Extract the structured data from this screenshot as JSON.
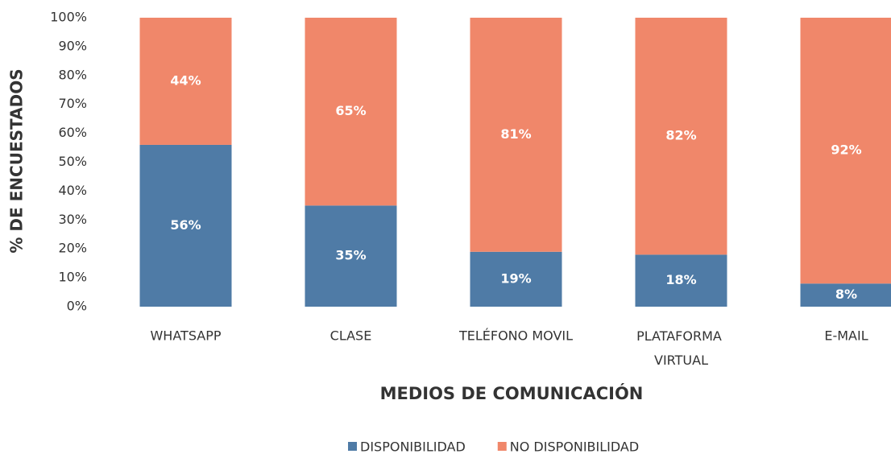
{
  "chart_data": {
    "type": "stacked_bar",
    "categories": [
      "WHATSAPP",
      "CLASE",
      "TELÉFONO MOVIL",
      "PLATAFORMA VIRTUAL",
      "E-MAIL"
    ],
    "series": [
      {
        "name": "DISPONIBILIDAD",
        "color": "#4f7ba6",
        "values": [
          56,
          35,
          19,
          18,
          8
        ],
        "value_labels": [
          "56%",
          "35%",
          "19%",
          "18%",
          "8%"
        ]
      },
      {
        "name": "NO DISPONIBILIDAD",
        "color": "#f0876a",
        "values": [
          44,
          65,
          81,
          82,
          92
        ],
        "value_labels": [
          "44%",
          "65%",
          "81%",
          "82%",
          "92%"
        ]
      }
    ],
    "xlabel": "MEDIOS DE COMUNICACIÓN",
    "ylabel": "% DE ENCUESTADOS",
    "ylim": [
      0,
      100
    ],
    "yticks": [
      {
        "value": 0,
        "label": "0%"
      },
      {
        "value": 10,
        "label": "10%"
      },
      {
        "value": 20,
        "label": "20%"
      },
      {
        "value": 30,
        "label": "30%"
      },
      {
        "value": 40,
        "label": "40%"
      },
      {
        "value": 50,
        "label": "50%"
      },
      {
        "value": 60,
        "label": "60%"
      },
      {
        "value": 70,
        "label": "70%"
      },
      {
        "value": 80,
        "label": "80%"
      },
      {
        "value": 90,
        "label": "90%"
      },
      {
        "value": 100,
        "label": "100%"
      }
    ],
    "grid": false,
    "legend": "bottom"
  }
}
